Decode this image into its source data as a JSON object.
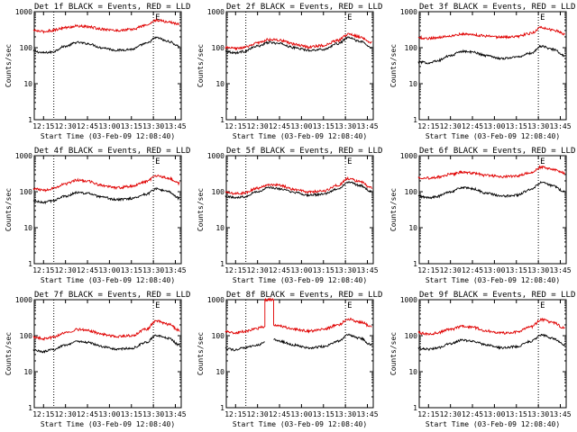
{
  "colors": {
    "events": "#000000",
    "lld": "#e00000",
    "axes": "#000000",
    "background": "#ffffff"
  },
  "chart_data": [
    {
      "type": "line",
      "title": "Det 1f BLACK = Events, RED = LLD",
      "xlabel": "Start Time (03-Feb-09 12:08:40)",
      "ylabel": "Counts/sec",
      "xlim": [
        "12:08:40",
        "13:49:00"
      ],
      "ylim": [
        1,
        1000
      ],
      "yscale": "log",
      "x_ticks": [
        "12:15",
        "12:30",
        "12:45",
        "13:00",
        "13:15",
        "13:30",
        "13:45"
      ],
      "y_ticks": [
        "1",
        "10",
        "100",
        "1000"
      ],
      "markers": [
        {
          "time": "12:22:00",
          "style": "dotted",
          "label": ""
        },
        {
          "time": "13:30:00",
          "style": "dotted",
          "label": "E"
        }
      ],
      "grid": false,
      "series": [
        {
          "name": "Events",
          "x": [
            "12:08",
            "12:15",
            "12:20",
            "12:30",
            "12:38",
            "12:45",
            "12:55",
            "13:05",
            "13:15",
            "13:25",
            "13:32",
            "13:40",
            "13:48"
          ],
          "y": [
            80,
            72,
            75,
            110,
            140,
            130,
            100,
            85,
            90,
            130,
            190,
            150,
            110
          ]
        },
        {
          "name": "LLD",
          "x": [
            "12:08",
            "12:15",
            "12:20",
            "12:30",
            "12:38",
            "12:45",
            "12:55",
            "13:05",
            "13:15",
            "13:25",
            "13:32",
            "13:40",
            "13:48"
          ],
          "y": [
            300,
            280,
            300,
            360,
            400,
            380,
            330,
            300,
            320,
            420,
            580,
            520,
            450
          ]
        }
      ]
    },
    {
      "type": "line",
      "title": "Det 2f BLACK = Events, RED = LLD",
      "xlabel": "Start Time (03-Feb-09 12:08:40)",
      "ylabel": "Counts/sec",
      "xlim": [
        "12:08:40",
        "13:49:00"
      ],
      "ylim": [
        1,
        1000
      ],
      "yscale": "log",
      "x_ticks": [
        "12:15",
        "12:30",
        "12:45",
        "13:00",
        "13:15",
        "13:30",
        "13:45"
      ],
      "y_ticks": [
        "1",
        "10",
        "100",
        "1000"
      ],
      "markers": [
        {
          "time": "12:22:00",
          "style": "dotted",
          "label": ""
        },
        {
          "time": "13:30:00",
          "style": "dotted",
          "label": "E"
        }
      ],
      "grid": false,
      "series": [
        {
          "name": "Events",
          "x": [
            "12:08",
            "12:15",
            "12:20",
            "12:30",
            "12:38",
            "12:45",
            "12:55",
            "13:05",
            "13:15",
            "13:25",
            "13:32",
            "13:40",
            "13:48"
          ],
          "y": [
            80,
            72,
            78,
            110,
            140,
            130,
            100,
            85,
            90,
            130,
            190,
            150,
            100
          ]
        },
        {
          "name": "LLD",
          "x": [
            "12:08",
            "12:15",
            "12:20",
            "12:30",
            "12:38",
            "12:45",
            "12:55",
            "13:05",
            "13:15",
            "13:25",
            "13:32",
            "13:40",
            "13:48"
          ],
          "y": [
            100,
            95,
            100,
            135,
            170,
            160,
            125,
            105,
            115,
            160,
            240,
            200,
            140
          ]
        }
      ]
    },
    {
      "type": "line",
      "title": "Det 3f BLACK = Events, RED = LLD",
      "xlabel": "Start Time (03-Feb-09 12:08:40)",
      "ylabel": "Counts/sec",
      "xlim": [
        "12:08:40",
        "13:49:00"
      ],
      "ylim": [
        1,
        1000
      ],
      "yscale": "log",
      "x_ticks": [
        "12:15",
        "12:30",
        "12:45",
        "13:00",
        "13:15",
        "13:30",
        "13:45"
      ],
      "y_ticks": [
        "1",
        "10",
        "100",
        "1000"
      ],
      "markers": [
        {
          "time": "13:30:00",
          "style": "dotted",
          "label": "E"
        }
      ],
      "grid": false,
      "series": [
        {
          "name": "Events",
          "x": [
            "12:08",
            "12:15",
            "12:20",
            "12:30",
            "12:38",
            "12:45",
            "12:55",
            "13:05",
            "13:15",
            "13:25",
            "13:32",
            "13:40",
            "13:48"
          ],
          "y": [
            40,
            38,
            42,
            60,
            80,
            75,
            60,
            50,
            55,
            70,
            110,
            90,
            60
          ]
        },
        {
          "name": "LLD",
          "x": [
            "12:08",
            "12:15",
            "12:20",
            "12:30",
            "12:38",
            "12:45",
            "12:55",
            "13:05",
            "13:15",
            "13:25",
            "13:32",
            "13:40",
            "13:48"
          ],
          "y": [
            190,
            180,
            190,
            215,
            240,
            230,
            210,
            195,
            205,
            250,
            360,
            310,
            240
          ]
        }
      ]
    },
    {
      "type": "line",
      "title": "Det 4f BLACK = Events, RED = LLD",
      "xlabel": "Start Time (03-Feb-09 12:08:40)",
      "ylabel": "Counts/sec",
      "xlim": [
        "12:08:40",
        "13:49:00"
      ],
      "ylim": [
        1,
        1000
      ],
      "yscale": "log",
      "x_ticks": [
        "12:15",
        "12:30",
        "12:45",
        "13:00",
        "13:15",
        "13:30",
        "13:45"
      ],
      "y_ticks": [
        "1",
        "10",
        "100",
        "1000"
      ],
      "markers": [
        {
          "time": "12:22:00",
          "style": "dotted",
          "label": ""
        },
        {
          "time": "13:30:00",
          "style": "dotted",
          "label": "E"
        }
      ],
      "grid": false,
      "series": [
        {
          "name": "Events",
          "x": [
            "12:08",
            "12:15",
            "12:20",
            "12:30",
            "12:38",
            "12:45",
            "12:55",
            "13:05",
            "13:15",
            "13:25",
            "13:32",
            "13:40",
            "13:48"
          ],
          "y": [
            55,
            50,
            55,
            75,
            95,
            90,
            70,
            60,
            65,
            85,
            120,
            100,
            65
          ]
        },
        {
          "name": "LLD",
          "x": [
            "12:08",
            "12:15",
            "12:20",
            "12:30",
            "12:38",
            "12:45",
            "12:55",
            "13:05",
            "13:15",
            "13:25",
            "13:32",
            "13:40",
            "13:48"
          ],
          "y": [
            120,
            110,
            120,
            165,
            210,
            195,
            150,
            130,
            140,
            190,
            280,
            240,
            170
          ]
        }
      ]
    },
    {
      "type": "line",
      "title": "Det 5f BLACK = Events, RED = LLD",
      "xlabel": "Start Time (03-Feb-09 12:08:40)",
      "ylabel": "Counts/sec",
      "xlim": [
        "12:08:40",
        "13:49:00"
      ],
      "ylim": [
        1,
        1000
      ],
      "yscale": "log",
      "x_ticks": [
        "12:15",
        "12:30",
        "12:45",
        "13:00",
        "13:15",
        "13:30",
        "13:45"
      ],
      "y_ticks": [
        "1",
        "10",
        "100",
        "1000"
      ],
      "markers": [
        {
          "time": "12:22:00",
          "style": "dotted",
          "label": ""
        },
        {
          "time": "13:30:00",
          "style": "dotted",
          "label": "E"
        }
      ],
      "grid": false,
      "series": [
        {
          "name": "Events",
          "x": [
            "12:08",
            "12:15",
            "12:20",
            "12:30",
            "12:38",
            "12:45",
            "12:55",
            "13:05",
            "13:15",
            "13:25",
            "13:32",
            "13:40",
            "13:48"
          ],
          "y": [
            75,
            68,
            72,
            100,
            130,
            120,
            95,
            80,
            85,
            120,
            185,
            150,
            100
          ]
        },
        {
          "name": "LLD",
          "x": [
            "12:08",
            "12:15",
            "12:20",
            "12:30",
            "12:38",
            "12:45",
            "12:55",
            "13:05",
            "13:15",
            "13:25",
            "13:32",
            "13:40",
            "13:48"
          ],
          "y": [
            95,
            88,
            92,
            125,
            160,
            150,
            115,
            98,
            105,
            150,
            230,
            190,
            125
          ]
        }
      ]
    },
    {
      "type": "line",
      "title": "Det 6f BLACK = Events, RED = LLD",
      "xlabel": "Start Time (03-Feb-09 12:08:40)",
      "ylabel": "Counts/sec",
      "xlim": [
        "12:08:40",
        "13:49:00"
      ],
      "ylim": [
        1,
        1000
      ],
      "yscale": "log",
      "x_ticks": [
        "12:15",
        "12:30",
        "12:45",
        "13:00",
        "13:15",
        "13:30",
        "13:45"
      ],
      "y_ticks": [
        "1",
        "10",
        "100",
        "1000"
      ],
      "markers": [
        {
          "time": "13:30:00",
          "style": "dotted",
          "label": "E"
        }
      ],
      "grid": false,
      "series": [
        {
          "name": "Events",
          "x": [
            "12:08",
            "12:15",
            "12:20",
            "12:30",
            "12:38",
            "12:45",
            "12:55",
            "13:05",
            "13:15",
            "13:25",
            "13:32",
            "13:40",
            "13:48"
          ],
          "y": [
            75,
            68,
            72,
            100,
            130,
            120,
            90,
            75,
            80,
            115,
            180,
            145,
            100
          ]
        },
        {
          "name": "LLD",
          "x": [
            "12:08",
            "12:15",
            "12:20",
            "12:30",
            "12:38",
            "12:45",
            "12:55",
            "13:05",
            "13:15",
            "13:25",
            "13:32",
            "13:40",
            "13:48"
          ],
          "y": [
            250,
            240,
            250,
            300,
            350,
            330,
            280,
            260,
            270,
            340,
            480,
            420,
            330
          ]
        }
      ]
    },
    {
      "type": "line",
      "title": "Det 7f BLACK = Events, RED = LLD",
      "xlabel": "Start Time (03-Feb-09 12:08:40)",
      "ylabel": "Counts/sec",
      "xlim": [
        "12:08:40",
        "13:49:00"
      ],
      "ylim": [
        1,
        1000
      ],
      "yscale": "log",
      "x_ticks": [
        "12:15",
        "12:30",
        "12:45",
        "13:00",
        "13:15",
        "13:30",
        "13:45"
      ],
      "y_ticks": [
        "1",
        "10",
        "100",
        "1000"
      ],
      "markers": [
        {
          "time": "12:22:00",
          "style": "dotted",
          "label": ""
        },
        {
          "time": "13:30:00",
          "style": "dotted",
          "label": "E"
        }
      ],
      "grid": false,
      "series": [
        {
          "name": "Events",
          "x": [
            "12:08",
            "12:15",
            "12:20",
            "12:30",
            "12:38",
            "12:45",
            "12:55",
            "13:05",
            "13:15",
            "13:25",
            "13:32",
            "13:40",
            "13:48"
          ],
          "y": [
            40,
            36,
            40,
            55,
            70,
            65,
            50,
            42,
            45,
            65,
            100,
            85,
            55
          ]
        },
        {
          "name": "LLD",
          "x": [
            "12:08",
            "12:15",
            "12:20",
            "12:30",
            "12:38",
            "12:45",
            "12:55",
            "13:05",
            "13:15",
            "13:25",
            "13:32",
            "13:40",
            "13:48"
          ],
          "y": [
            90,
            82,
            88,
            120,
            150,
            140,
            110,
            95,
            100,
            150,
            260,
            210,
            140
          ]
        }
      ]
    },
    {
      "type": "line",
      "title": "Det 8f BLACK = Events, RED = LLD",
      "xlabel": "Start Time (03-Feb-09 12:08:40)",
      "ylabel": "Counts/sec",
      "xlim": [
        "12:08:40",
        "13:49:00"
      ],
      "ylim": [
        1,
        1000
      ],
      "yscale": "log",
      "x_ticks": [
        "12:15",
        "12:30",
        "12:45",
        "13:00",
        "13:15",
        "13:30",
        "13:45"
      ],
      "y_ticks": [
        "1",
        "10",
        "100",
        "1000"
      ],
      "markers": [
        {
          "time": "12:22:00",
          "style": "dotted",
          "label": ""
        },
        {
          "time": "13:30:00",
          "style": "dotted",
          "label": "E"
        }
      ],
      "grid": false,
      "series": [
        {
          "name": "Events",
          "x": [
            "12:08",
            "12:15",
            "12:20",
            "12:30",
            "12:35",
            "12:35",
            "12:41",
            "12:41",
            "12:45",
            "12:55",
            "13:05",
            "13:15",
            "13:25",
            "13:32",
            "13:40",
            "13:48"
          ],
          "y": [
            45,
            40,
            45,
            55,
            65,
            null,
            null,
            80,
            70,
            55,
            46,
            50,
            70,
            105,
            85,
            55
          ]
        },
        {
          "name": "LLD",
          "x": [
            "12:08",
            "12:15",
            "12:20",
            "12:30",
            "12:35",
            "12:35",
            "12:41",
            "12:41",
            "12:45",
            "12:55",
            "13:05",
            "13:15",
            "13:25",
            "13:32",
            "13:40",
            "13:48"
          ],
          "y": [
            130,
            120,
            130,
            160,
            180,
            1000,
            1000,
            200,
            185,
            150,
            135,
            150,
            200,
            290,
            240,
            180
          ]
        }
      ]
    },
    {
      "type": "line",
      "title": "Det 9f BLACK = Events, RED = LLD",
      "xlabel": "Start Time (03-Feb-09 12:08:40)",
      "ylabel": "Counts/sec",
      "xlim": [
        "12:08:40",
        "13:49:00"
      ],
      "ylim": [
        1,
        1000
      ],
      "yscale": "log",
      "x_ticks": [
        "12:15",
        "12:30",
        "12:45",
        "13:00",
        "13:15",
        "13:30",
        "13:45"
      ],
      "y_ticks": [
        "1",
        "10",
        "100",
        "1000"
      ],
      "markers": [
        {
          "time": "13:30:00",
          "style": "dotted",
          "label": "E"
        }
      ],
      "grid": false,
      "series": [
        {
          "name": "Events",
          "x": [
            "12:08",
            "12:15",
            "12:20",
            "12:30",
            "12:38",
            "12:45",
            "12:55",
            "13:05",
            "13:15",
            "13:25",
            "13:32",
            "13:40",
            "13:48"
          ],
          "y": [
            45,
            42,
            45,
            60,
            75,
            70,
            55,
            46,
            50,
            70,
            105,
            85,
            55
          ]
        },
        {
          "name": "LLD",
          "x": [
            "12:08",
            "12:15",
            "12:20",
            "12:30",
            "12:38",
            "12:45",
            "12:55",
            "13:05",
            "13:15",
            "13:25",
            "13:32",
            "13:40",
            "13:48"
          ],
          "y": [
            120,
            110,
            118,
            150,
            180,
            170,
            135,
            118,
            125,
            175,
            280,
            230,
            160
          ]
        }
      ]
    }
  ]
}
